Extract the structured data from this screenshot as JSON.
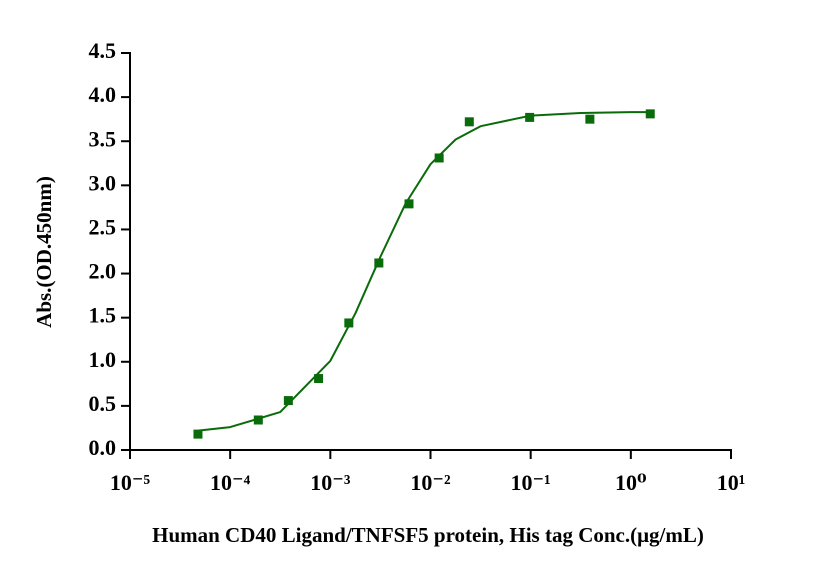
{
  "chart_data": {
    "type": "scatter",
    "xlabel": "Human CD40 Ligand/TNFSF5 protein, His tag  Conc.(μg/mL)",
    "ylabel": "Abs.(OD.450nm)",
    "xscale": "log",
    "xlim": [
      1e-05,
      10
    ],
    "xticks": [
      {
        "value": 1e-05,
        "label": "10⁻⁵"
      },
      {
        "value": 0.0001,
        "label": "10⁻⁴"
      },
      {
        "value": 0.001,
        "label": "10⁻³"
      },
      {
        "value": 0.01,
        "label": "10⁻²"
      },
      {
        "value": 0.1,
        "label": "10⁻¹"
      },
      {
        "value": 1,
        "label": "10⁰"
      },
      {
        "value": 10,
        "label": "10¹"
      }
    ],
    "ylim": [
      0,
      4.5
    ],
    "yticks": [
      {
        "value": 0,
        "label": "0.0"
      },
      0.5,
      {
        "value": 1,
        "label": "1.0"
      },
      1.5,
      {
        "value": 2,
        "label": "2.0"
      },
      2.5,
      {
        "value": 3,
        "label": "3.0"
      },
      3.5,
      {
        "value": 4,
        "label": "4.0"
      },
      4.5
    ],
    "series": [
      {
        "type": "scatter",
        "color": "#0a6b0a",
        "x": [
          4.77e-05,
          0.000191,
          0.000381,
          0.000763,
          0.00153,
          0.00305,
          0.0061,
          0.0122,
          0.0244,
          0.0977,
          0.39,
          1.5625
        ],
        "values": [
          0.18,
          0.34,
          0.56,
          0.81,
          1.44,
          2.12,
          2.79,
          3.31,
          3.72,
          3.77,
          3.75,
          3.81
        ]
      },
      {
        "type": "line",
        "color": "#0a6b0a",
        "x": [
          4.8e-05,
          0.0001,
          0.000316,
          0.001,
          0.00178,
          0.00316,
          0.00562,
          0.01,
          0.0178,
          0.0316,
          0.1,
          0.316,
          1,
          1.58
        ],
        "values": [
          0.22,
          0.26,
          0.43,
          1.01,
          1.55,
          2.19,
          2.79,
          3.24,
          3.52,
          3.67,
          3.79,
          3.82,
          3.83,
          3.83
        ]
      }
    ]
  }
}
